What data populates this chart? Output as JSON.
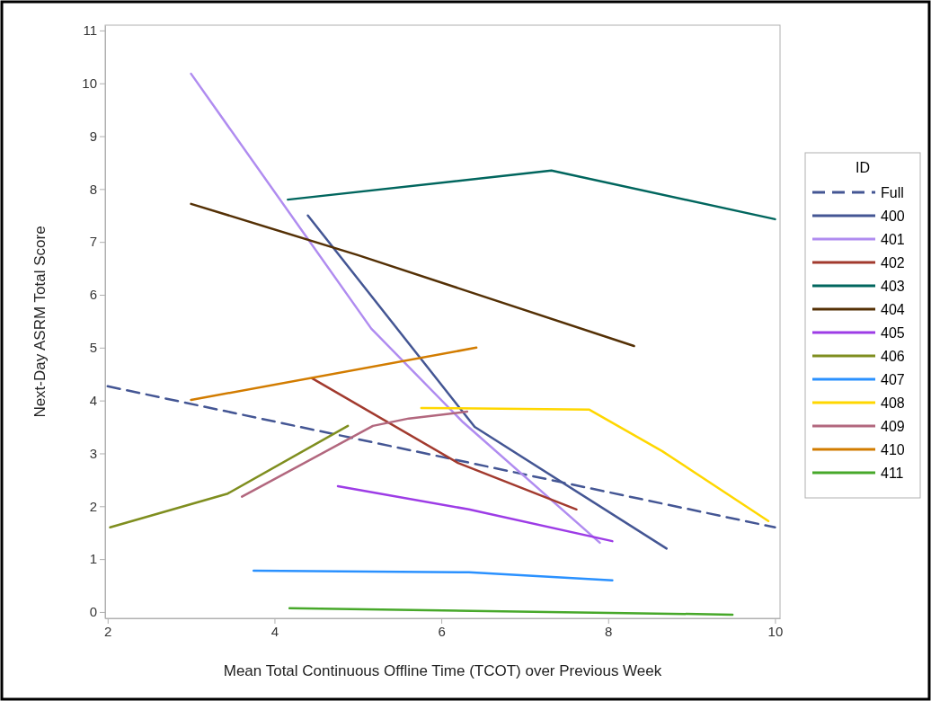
{
  "chart_data": {
    "type": "line",
    "xlabel": "Mean Total Continuous Offline Time (TCOT) over Previous Week",
    "ylabel": "Next-Day ASRM Total Score",
    "legend_title": "ID",
    "legend": "right",
    "grid": false,
    "marker": "none",
    "xlim": [
      1.97,
      10.06
    ],
    "xticks": [
      2,
      4,
      6,
      8,
      10
    ],
    "ylim": [
      -0.12,
      11.1
    ],
    "yticks": [
      0,
      1,
      2,
      3,
      4,
      5,
      6,
      7,
      8,
      9,
      10,
      11
    ],
    "series": [
      {
        "name": "Full",
        "color": "#445694",
        "line_style": "dashed",
        "x": [
          2,
          10
        ],
        "values": [
          4.27,
          1.6
        ]
      },
      {
        "name": "400",
        "color": "#445694",
        "x": [
          4.4,
          6.4,
          8.7
        ],
        "values": [
          7.5,
          3.5,
          1.2
        ]
      },
      {
        "name": "401",
        "color": "#b08cf0",
        "x": [
          3.0,
          5.16,
          6.26,
          7.9
        ],
        "values": [
          10.18,
          5.36,
          3.59,
          1.31
        ]
      },
      {
        "name": "402",
        "color": "#a23a2e",
        "x": [
          4.45,
          6.2,
          7.62
        ],
        "values": [
          4.42,
          2.82,
          1.94
        ]
      },
      {
        "name": "403",
        "color": "#01665e",
        "x": [
          4.16,
          7.32,
          10.0
        ],
        "values": [
          7.8,
          8.35,
          7.43
        ]
      },
      {
        "name": "404",
        "color": "#543005",
        "x": [
          3.0,
          5.0,
          8.31
        ],
        "values": [
          7.72,
          6.75,
          5.03
        ]
      },
      {
        "name": "405",
        "color": "#9d3ce6",
        "x": [
          4.76,
          6.33,
          8.05
        ],
        "values": [
          2.38,
          1.94,
          1.34
        ]
      },
      {
        "name": "406",
        "color": "#7f8e1f",
        "x": [
          2.03,
          3.44,
          4.88
        ],
        "values": [
          1.6,
          2.24,
          3.52
        ]
      },
      {
        "name": "407",
        "color": "#2a91ff",
        "x": [
          3.75,
          6.33,
          8.05
        ],
        "values": [
          0.78,
          0.75,
          0.6
        ]
      },
      {
        "name": "408",
        "color": "#ffd700",
        "x": [
          5.76,
          7.77,
          8.65,
          9.92
        ],
        "values": [
          3.86,
          3.83,
          3.04,
          1.72
        ]
      },
      {
        "name": "409",
        "color": "#b2677e",
        "x": [
          3.61,
          5.18,
          5.61,
          6.31
        ],
        "values": [
          2.18,
          3.52,
          3.66,
          3.79
        ]
      },
      {
        "name": "410",
        "color": "#d27c00",
        "x": [
          3.0,
          6.42
        ],
        "values": [
          4.01,
          5.0
        ]
      },
      {
        "name": "411",
        "color": "#47a82a",
        "x": [
          4.18,
          9.49
        ],
        "values": [
          0.07,
          -0.05
        ]
      }
    ]
  }
}
